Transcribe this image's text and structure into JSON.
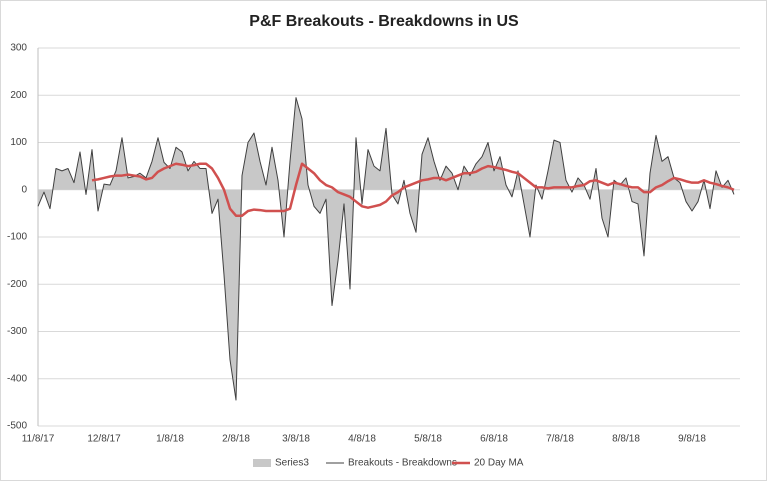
{
  "chart_data": {
    "type": "line",
    "title": "P&F Breakouts - Breakdowns in US",
    "categories": [
      "11/8/17",
      null,
      null,
      null,
      null,
      null,
      null,
      null,
      null,
      null,
      null,
      "12/8/17",
      null,
      null,
      null,
      null,
      null,
      null,
      null,
      null,
      null,
      null,
      "1/8/18",
      null,
      null,
      null,
      null,
      null,
      null,
      null,
      null,
      null,
      null,
      "2/8/18",
      null,
      null,
      null,
      null,
      null,
      null,
      null,
      null,
      null,
      "3/8/18",
      null,
      null,
      null,
      null,
      null,
      null,
      null,
      null,
      null,
      null,
      "4/8/18",
      null,
      null,
      null,
      null,
      null,
      null,
      null,
      null,
      null,
      null,
      "5/8/18",
      null,
      null,
      null,
      null,
      null,
      null,
      null,
      null,
      null,
      null,
      "6/8/18",
      null,
      null,
      null,
      null,
      null,
      null,
      null,
      null,
      null,
      null,
      "7/8/18",
      null,
      null,
      null,
      null,
      null,
      null,
      null,
      null,
      null,
      null,
      "8/8/18",
      null,
      null,
      null,
      null,
      null,
      null,
      null,
      null,
      null,
      null,
      "9/8/18",
      null,
      null,
      null,
      null,
      null,
      null,
      null
    ],
    "series": [
      {
        "name": "Series3",
        "kind": "area",
        "color": "#c8c8c8",
        "values": [
          -35,
          -5,
          -40,
          45,
          40,
          45,
          15,
          80,
          -10,
          85,
          -45,
          12,
          10,
          40,
          110,
          25,
          28,
          35,
          25,
          60,
          110,
          58,
          45,
          90,
          80,
          40,
          60,
          45,
          45,
          -50,
          -20,
          -180,
          -360,
          -445,
          30,
          100,
          120,
          60,
          10,
          90,
          20,
          -100,
          60,
          195,
          150,
          10,
          -35,
          -50,
          -20,
          -245,
          -150,
          -30,
          -210,
          110,
          -30,
          85,
          50,
          40,
          130,
          -10,
          -30,
          20,
          -50,
          -90,
          75,
          110,
          60,
          20,
          50,
          35,
          0,
          50,
          30,
          55,
          70,
          100,
          40,
          70,
          10,
          -15,
          40,
          -30,
          -100,
          10,
          -20,
          40,
          105,
          100,
          20,
          -5,
          25,
          10,
          -20,
          45,
          -60,
          -100,
          20,
          10,
          25,
          -25,
          -30,
          -140,
          35,
          115,
          60,
          70,
          25,
          15,
          -25,
          -45,
          -25,
          20,
          -40,
          40,
          5,
          20,
          -10
        ]
      },
      {
        "name": "Breakouts - Breakdowns",
        "kind": "line",
        "color": "#404040",
        "width": 1,
        "values": [
          -35,
          -5,
          -40,
          45,
          40,
          45,
          15,
          80,
          -10,
          85,
          -45,
          12,
          10,
          40,
          110,
          25,
          28,
          35,
          25,
          60,
          110,
          58,
          45,
          90,
          80,
          40,
          60,
          45,
          45,
          -50,
          -20,
          -180,
          -360,
          -445,
          30,
          100,
          120,
          60,
          10,
          90,
          20,
          -100,
          60,
          195,
          150,
          10,
          -35,
          -50,
          -20,
          -245,
          -150,
          -30,
          -210,
          110,
          -30,
          85,
          50,
          40,
          130,
          -10,
          -30,
          20,
          -50,
          -90,
          75,
          110,
          60,
          20,
          50,
          35,
          0,
          50,
          30,
          55,
          70,
          100,
          40,
          70,
          10,
          -15,
          40,
          -30,
          -100,
          10,
          -20,
          40,
          105,
          100,
          20,
          -5,
          25,
          10,
          -20,
          45,
          -60,
          -100,
          20,
          10,
          25,
          -25,
          -30,
          -140,
          35,
          115,
          60,
          70,
          25,
          15,
          -25,
          -45,
          -25,
          20,
          -40,
          40,
          5,
          20,
          -10
        ]
      },
      {
        "name": "20 Day MA",
        "kind": "line",
        "color": "#d0504f",
        "width": 2.5,
        "values": [
          null,
          null,
          null,
          null,
          null,
          null,
          null,
          null,
          null,
          20,
          22,
          25,
          28,
          30,
          30,
          32,
          30,
          28,
          22,
          25,
          38,
          45,
          50,
          55,
          53,
          50,
          52,
          55,
          55,
          45,
          25,
          0,
          -40,
          -55,
          -55,
          -45,
          -42,
          -43,
          -45,
          -45,
          -45,
          -45,
          -40,
          10,
          55,
          45,
          35,
          20,
          10,
          5,
          -5,
          -10,
          -15,
          -25,
          -35,
          -38,
          -35,
          -32,
          -25,
          -12,
          -5,
          5,
          10,
          15,
          20,
          22,
          25,
          25,
          20,
          25,
          30,
          35,
          35,
          38,
          45,
          50,
          48,
          45,
          42,
          38,
          35,
          25,
          15,
          5,
          5,
          3,
          5,
          5,
          5,
          5,
          8,
          10,
          18,
          20,
          15,
          10,
          15,
          12,
          8,
          5,
          5,
          -5,
          -5,
          5,
          10,
          18,
          25,
          22,
          18,
          15,
          15,
          20,
          15,
          12,
          8,
          5,
          0
        ]
      }
    ],
    "ylim": [
      -500,
      300
    ],
    "yticks": [
      -500,
      -400,
      -300,
      -200,
      -100,
      0,
      100,
      200,
      300
    ],
    "grid": true,
    "legend": "bottom"
  }
}
